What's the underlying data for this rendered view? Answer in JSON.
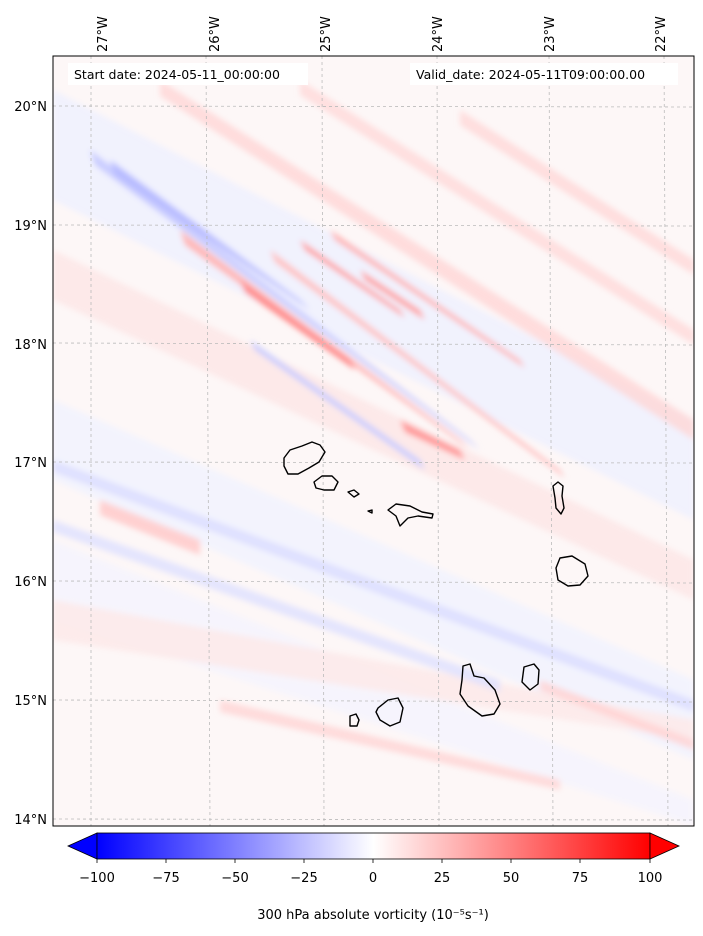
{
  "map": {
    "start_label": "Start date: 2024-05-11_00:00:00",
    "valid_label": "Valid_date: 2024-05-11T09:00:00.00",
    "lon_labels": [
      "27°W",
      "26°W",
      "25°W",
      "24°W",
      "23°W",
      "22°W"
    ],
    "lat_labels": [
      "20°N",
      "19°N",
      "18°N",
      "17°N",
      "16°N",
      "15°N",
      "14°N"
    ],
    "colors": {
      "negative": "#0000ff",
      "positive": "#ff0000",
      "coastline": "#000000",
      "grid": "#bbbbbb"
    }
  },
  "colorbar": {
    "ticks": [
      "−100",
      "−75",
      "−50",
      "−25",
      "0",
      "25",
      "50",
      "75",
      "100"
    ],
    "label": "300 hPa absolute vorticity (10⁻⁵s⁻¹)"
  }
}
